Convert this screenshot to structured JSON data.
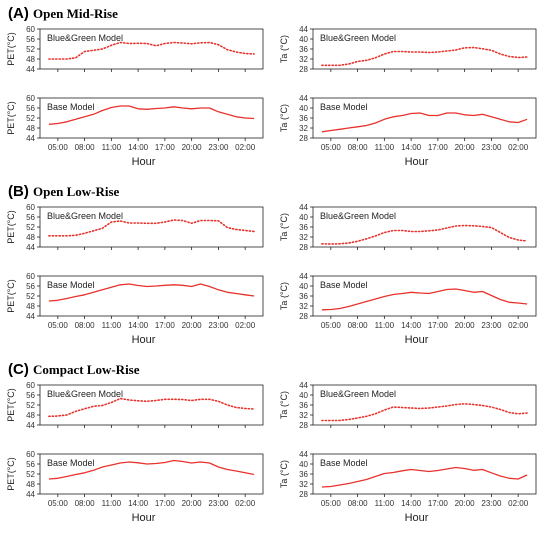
{
  "sections": [
    {
      "letter": "(A)",
      "name": "Open Mid-Rise"
    },
    {
      "letter": "(B)",
      "name": "Open Low-Rise"
    },
    {
      "letter": "(C)",
      "name": "Compact Low-Rise"
    }
  ],
  "common": {
    "xlabel": "Hour",
    "x_ticks": [
      "05:00",
      "08:00",
      "11:00",
      "14:00",
      "17:00",
      "20:00",
      "23:00",
      "02:00"
    ],
    "x_hours": [
      5,
      8,
      11,
      14,
      17,
      20,
      23,
      26
    ],
    "x_range": [
      3,
      28
    ],
    "pet_ylabel": "PET(°C)",
    "ta_ylabel": "Ta (°C)",
    "pet_ticks": [
      44,
      48,
      52,
      56,
      60
    ],
    "pet_range": [
      44,
      60
    ],
    "ta_ticks": [
      28,
      32,
      36,
      40,
      44
    ],
    "ta_range": [
      28,
      44
    ],
    "line_color": "#e8322d"
  },
  "chart_data": [
    {
      "type": "line",
      "section": 0,
      "variable": "pet",
      "label": "Blue&Green Model",
      "style": "dotted",
      "x": [
        4,
        5,
        6,
        7,
        8,
        9,
        10,
        11,
        12,
        13,
        14,
        15,
        16,
        17,
        18,
        19,
        20,
        21,
        22,
        23,
        24,
        25,
        26,
        27
      ],
      "y": [
        48,
        48,
        48,
        48.5,
        51,
        51.5,
        52,
        53.5,
        54.6,
        54.2,
        54.3,
        54.2,
        53.3,
        54.2,
        54.6,
        54.4,
        54.1,
        54.5,
        54.6,
        53.7,
        51.7,
        50.8,
        50.2,
        50
      ]
    },
    {
      "type": "line",
      "section": 0,
      "variable": "pet",
      "label": "Base Model",
      "style": "solid",
      "x": [
        4,
        5,
        6,
        7,
        8,
        9,
        10,
        11,
        12,
        13,
        14,
        15,
        16,
        17,
        18,
        19,
        20,
        21,
        22,
        23,
        24,
        25,
        26,
        27
      ],
      "y": [
        49.5,
        49.8,
        50.5,
        51.5,
        52.5,
        53.5,
        55,
        56.2,
        56.8,
        56.8,
        55.7,
        55.5,
        55.8,
        56,
        56.5,
        56,
        55.7,
        56,
        56,
        54.5,
        53.5,
        52.5,
        52,
        51.8
      ]
    },
    {
      "type": "line",
      "section": 0,
      "variable": "ta",
      "label": "Blue&Green Model",
      "style": "dotted",
      "x": [
        4,
        5,
        6,
        7,
        8,
        9,
        10,
        11,
        12,
        13,
        14,
        15,
        16,
        17,
        18,
        19,
        20,
        21,
        22,
        23,
        24,
        25,
        26,
        27
      ],
      "y": [
        29.5,
        29.5,
        29.5,
        30,
        31,
        31.5,
        32.5,
        34,
        35,
        35,
        34.8,
        34.8,
        34.6,
        34.8,
        35.2,
        35.6,
        36.5,
        36.6,
        36.1,
        35.5,
        34,
        33,
        32.6,
        32.8
      ]
    },
    {
      "type": "line",
      "section": 0,
      "variable": "ta",
      "label": "Base Model",
      "style": "solid",
      "x": [
        4,
        5,
        6,
        7,
        8,
        9,
        10,
        11,
        12,
        13,
        14,
        15,
        16,
        17,
        18,
        19,
        20,
        21,
        22,
        23,
        24,
        25,
        26,
        27
      ],
      "y": [
        30.5,
        31,
        31.5,
        32,
        32.5,
        33,
        34,
        35.5,
        36.5,
        37,
        37.8,
        38,
        37,
        37,
        38,
        38,
        37.3,
        37,
        37.5,
        36.5,
        35.5,
        34.5,
        34.2,
        35.5
      ]
    },
    {
      "type": "line",
      "section": 1,
      "variable": "pet",
      "label": "Blue&Green Model",
      "style": "dotted",
      "x": [
        4,
        5,
        6,
        7,
        8,
        9,
        10,
        11,
        12,
        13,
        14,
        15,
        16,
        17,
        18,
        19,
        20,
        21,
        22,
        23,
        24,
        25,
        26,
        27
      ],
      "y": [
        48.5,
        48.5,
        48.5,
        48.7,
        49.5,
        50.5,
        51.5,
        54,
        54.4,
        53.6,
        53.6,
        53.5,
        53.5,
        54,
        54.8,
        54.6,
        53.5,
        54.6,
        54.6,
        54.5,
        51.8,
        51,
        50.6,
        50.2
      ]
    },
    {
      "type": "line",
      "section": 1,
      "variable": "pet",
      "label": "Base Model",
      "style": "solid",
      "x": [
        4,
        5,
        6,
        7,
        8,
        9,
        10,
        11,
        12,
        13,
        14,
        15,
        16,
        17,
        18,
        19,
        20,
        21,
        22,
        23,
        24,
        25,
        26,
        27
      ],
      "y": [
        50,
        50.3,
        51,
        51.8,
        52.5,
        53.5,
        54.5,
        55.5,
        56.5,
        56.8,
        56.2,
        55.8,
        56,
        56.3,
        56.5,
        56.3,
        55.8,
        56.8,
        55.8,
        54.5,
        53.5,
        53,
        52.5,
        52
      ]
    },
    {
      "type": "line",
      "section": 1,
      "variable": "ta",
      "label": "Blue&Green Model",
      "style": "dotted",
      "x": [
        4,
        5,
        6,
        7,
        8,
        9,
        10,
        11,
        12,
        13,
        14,
        15,
        16,
        17,
        18,
        19,
        20,
        21,
        22,
        23,
        24,
        25,
        26,
        27
      ],
      "y": [
        29.3,
        29.2,
        29.3,
        29.6,
        30.3,
        31.3,
        32.4,
        33.8,
        34.6,
        34.6,
        34.2,
        34.2,
        34.5,
        34.8,
        35.6,
        36.4,
        36.6,
        36.5,
        36.2,
        35.8,
        33.8,
        31.8,
        30.8,
        30.4
      ]
    },
    {
      "type": "line",
      "section": 1,
      "variable": "ta",
      "label": "Base Model",
      "style": "solid",
      "x": [
        4,
        5,
        6,
        7,
        8,
        9,
        10,
        11,
        12,
        13,
        14,
        15,
        16,
        17,
        18,
        19,
        20,
        21,
        22,
        23,
        24,
        25,
        26,
        27
      ],
      "y": [
        30.5,
        30.6,
        31,
        31.8,
        32.8,
        33.8,
        34.8,
        35.8,
        36.6,
        37,
        37.5,
        37.2,
        37,
        37.8,
        38.6,
        38.8,
        38.2,
        37.5,
        37.8,
        36.2,
        34.6,
        33.5,
        33.2,
        32.8
      ]
    },
    {
      "type": "line",
      "section": 2,
      "variable": "pet",
      "label": "Blue&Green Model",
      "style": "dotted",
      "x": [
        4,
        5,
        6,
        7,
        8,
        9,
        10,
        11,
        12,
        13,
        14,
        15,
        16,
        17,
        18,
        19,
        20,
        21,
        22,
        23,
        24,
        25,
        26,
        27
      ],
      "y": [
        47.5,
        47.6,
        48,
        49.5,
        50.5,
        51.5,
        51.8,
        53,
        54.6,
        54,
        53.7,
        53.5,
        53.8,
        54.3,
        54.3,
        54.2,
        53.8,
        54.3,
        54.3,
        53.5,
        52,
        51,
        50.6,
        50.4
      ]
    },
    {
      "type": "line",
      "section": 2,
      "variable": "pet",
      "label": "Base Model",
      "style": "solid",
      "x": [
        4,
        5,
        6,
        7,
        8,
        9,
        10,
        11,
        12,
        13,
        14,
        15,
        16,
        17,
        18,
        19,
        20,
        21,
        22,
        23,
        24,
        25,
        26,
        27
      ],
      "y": [
        50,
        50.3,
        51,
        51.8,
        52.5,
        53.5,
        54.8,
        55.6,
        56.4,
        56.8,
        56.5,
        56,
        56.2,
        56.6,
        57.4,
        57,
        56.4,
        56.8,
        56.4,
        54.8,
        53.8,
        53.2,
        52.5,
        51.8
      ]
    },
    {
      "type": "line",
      "section": 2,
      "variable": "ta",
      "label": "Blue&Green Model",
      "style": "dotted",
      "x": [
        4,
        5,
        6,
        7,
        8,
        9,
        10,
        11,
        12,
        13,
        14,
        15,
        16,
        17,
        18,
        19,
        20,
        21,
        22,
        23,
        24,
        25,
        26,
        27
      ],
      "y": [
        29.8,
        29.8,
        29.8,
        30.2,
        30.8,
        31.5,
        32.5,
        34,
        35.2,
        35,
        34.8,
        34.6,
        34.8,
        35.2,
        35.6,
        36.2,
        36.5,
        36.2,
        35.8,
        35.2,
        34.2,
        33,
        32.5,
        32.8
      ]
    },
    {
      "type": "line",
      "section": 2,
      "variable": "ta",
      "label": "Base Model",
      "style": "solid",
      "x": [
        4,
        5,
        6,
        7,
        8,
        9,
        10,
        11,
        12,
        13,
        14,
        15,
        16,
        17,
        18,
        19,
        20,
        21,
        22,
        23,
        24,
        25,
        26,
        27
      ],
      "y": [
        30.8,
        31,
        31.6,
        32.2,
        33,
        33.8,
        35,
        36.2,
        36.6,
        37.3,
        37.8,
        37.4,
        37,
        37.4,
        38,
        38.6,
        38.2,
        37.5,
        37.8,
        36.5,
        35.2,
        34.3,
        34,
        35.6
      ]
    }
  ]
}
